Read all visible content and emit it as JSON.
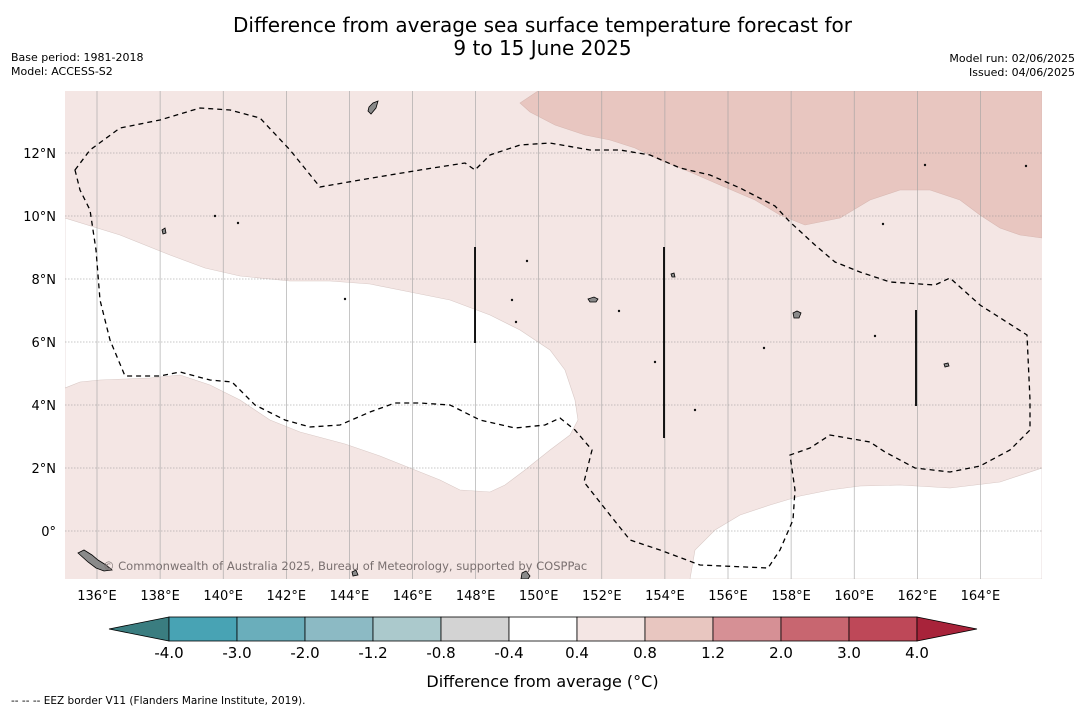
{
  "header": {
    "title_line1": "Difference from average sea surface temperature forecast for",
    "title_line2": "9 to 15 June 2025",
    "base_period": "Base period: 1981-2018",
    "model": "Model: ACCESS-S2",
    "model_run": "Model run: 02/06/2025",
    "issued": "Issued: 04/06/2025"
  },
  "map": {
    "lon_ticks": [
      "136°E",
      "138°E",
      "140°E",
      "142°E",
      "144°E",
      "146°E",
      "148°E",
      "150°E",
      "152°E",
      "154°E",
      "156°E",
      "158°E",
      "160°E",
      "162°E",
      "164°E"
    ],
    "lat_ticks": [
      "12°N",
      "10°N",
      "8°N",
      "6°N",
      "4°N",
      "2°N",
      "0°"
    ],
    "credit": "© Commonwealth of Australia 2025, Bureau of Meteorology, supported by COSPPac",
    "colors": {
      "anomaly_0_4_to_0_8": "#f4e6e4",
      "anomaly_0_8_to_1_2": "#e8c6c0",
      "neutral": "#ffffff",
      "land": "#8a8a8a",
      "eez_border": "#000000"
    }
  },
  "colorbar": {
    "labels": [
      "-4.0",
      "-3.0",
      "-2.0",
      "-1.2",
      "-0.8",
      "-0.4",
      "0.4",
      "0.8",
      "1.2",
      "2.0",
      "3.0",
      "4.0"
    ],
    "colors": [
      "#48a3b4",
      "#6aaebb",
      "#8cbac4",
      "#abc9cc",
      "#d3d3d3",
      "#ffffff",
      "#f4e6e4",
      "#e8c6c0",
      "#d69095",
      "#c86670",
      "#be4858"
    ],
    "low_extend_color": "#3a7d80",
    "high_extend_color": "#a8233a",
    "label": "Difference from average (°C)"
  },
  "footnote": "--  --  -- EEZ border V11 (Flanders Marine Institute, 2019)."
}
